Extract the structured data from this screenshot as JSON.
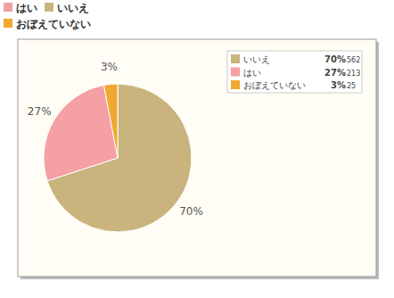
{
  "chart_data": {
    "type": "pie",
    "categories": [
      "いいえ",
      "はい",
      "おぼえていない"
    ],
    "values": [
      70,
      27,
      3
    ],
    "value_labels": [
      "70%",
      "27%",
      "3%"
    ],
    "counts": [
      562,
      213,
      25
    ],
    "colors": [
      "#c8b47c",
      "#f4a0a4",
      "#f0a830"
    ],
    "data_labels": true,
    "legend": "top-right"
  }
}
